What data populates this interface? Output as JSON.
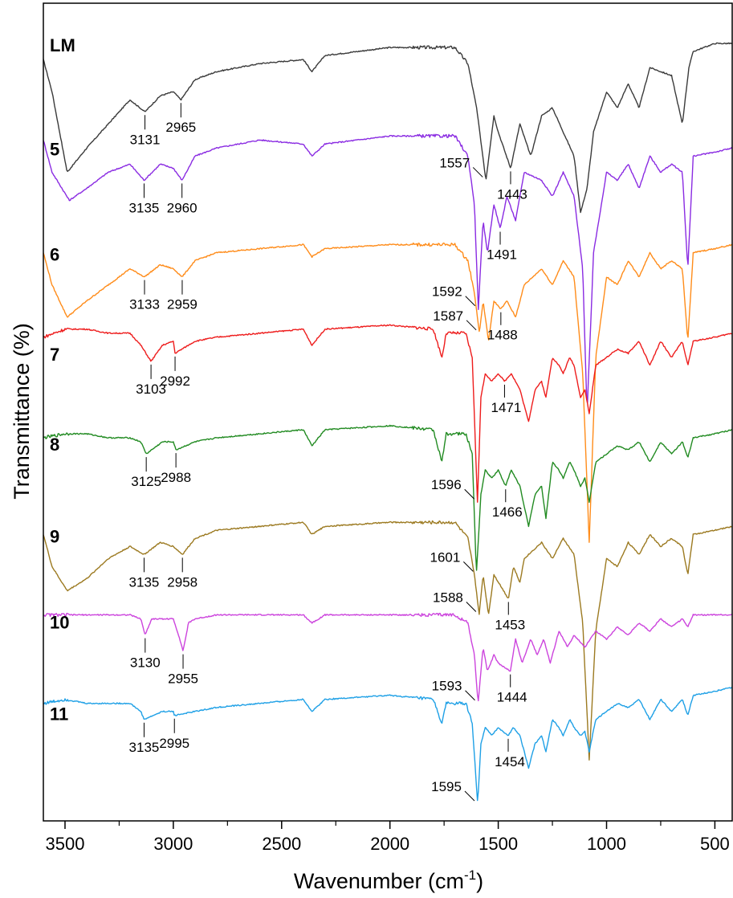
{
  "chart_data": {
    "type": "line",
    "xlabel": "Wavenumber (cm",
    "xlabel_sup": "-1",
    "xlabel_close": ")",
    "ylabel": "Transmittance (%)",
    "xlim": [
      3600,
      420
    ],
    "x_reversed": true,
    "x_ticks": [
      3500,
      3000,
      2500,
      2000,
      1500,
      1000,
      500
    ],
    "x_tick_labels": [
      "3500",
      "3000",
      "2500",
      "2000",
      "1500",
      "1000",
      "500"
    ],
    "y_ticks_shown": false,
    "grid": false,
    "series": [
      {
        "name": "LM",
        "color": "#3a3a3a",
        "baseline": 0.962,
        "x": [
          3600,
          3560,
          3490,
          3400,
          3300,
          3200,
          3131,
          3060,
          3000,
          2965,
          2900,
          2800,
          2600,
          2400,
          2360,
          2300,
          2000,
          1700,
          1640,
          1600,
          1557,
          1520,
          1500,
          1443,
          1400,
          1350,
          1300,
          1250,
          1200,
          1150,
          1120,
          1090,
          1060,
          1000,
          950,
          900,
          850,
          800,
          700,
          650,
          620,
          600,
          500,
          420
        ],
        "t": [
          0.94,
          0.9,
          0.8,
          0.83,
          0.86,
          0.89,
          0.875,
          0.895,
          0.9,
          0.89,
          0.915,
          0.925,
          0.935,
          0.94,
          0.925,
          0.945,
          0.955,
          0.955,
          0.935,
          0.88,
          0.79,
          0.87,
          0.85,
          0.805,
          0.86,
          0.82,
          0.87,
          0.88,
          0.85,
          0.82,
          0.75,
          0.78,
          0.85,
          0.9,
          0.88,
          0.91,
          0.88,
          0.93,
          0.92,
          0.86,
          0.93,
          0.95,
          0.96,
          0.96
        ]
      },
      {
        "name": "5",
        "color": "#8a2be2",
        "baseline": 0.833,
        "x": [
          3600,
          3560,
          3480,
          3400,
          3300,
          3200,
          3135,
          3060,
          3000,
          2960,
          2900,
          2800,
          2600,
          2400,
          2360,
          2300,
          2000,
          1700,
          1640,
          1610,
          1592,
          1570,
          1550,
          1520,
          1491,
          1460,
          1420,
          1380,
          1300,
          1250,
          1200,
          1150,
          1110,
          1090,
          1060,
          1000,
          950,
          900,
          850,
          800,
          750,
          700,
          650,
          625,
          600,
          500,
          420
        ],
        "t": [
          0.84,
          0.8,
          0.765,
          0.78,
          0.8,
          0.81,
          0.79,
          0.81,
          0.805,
          0.79,
          0.82,
          0.83,
          0.84,
          0.835,
          0.82,
          0.835,
          0.845,
          0.845,
          0.82,
          0.76,
          0.63,
          0.74,
          0.7,
          0.76,
          0.73,
          0.77,
          0.74,
          0.8,
          0.79,
          0.77,
          0.8,
          0.77,
          0.68,
          0.5,
          0.7,
          0.8,
          0.79,
          0.81,
          0.78,
          0.82,
          0.8,
          0.81,
          0.8,
          0.68,
          0.82,
          0.825,
          0.83
        ]
      },
      {
        "name": "6",
        "color": "#ff8c1a",
        "baseline": 0.702,
        "x": [
          3600,
          3560,
          3490,
          3400,
          3300,
          3200,
          3133,
          3060,
          3000,
          2959,
          2900,
          2800,
          2600,
          2400,
          2360,
          2300,
          2000,
          1700,
          1640,
          1610,
          1587,
          1570,
          1545,
          1520,
          1488,
          1460,
          1420,
          1380,
          1300,
          1250,
          1200,
          1150,
          1110,
          1080,
          1050,
          1000,
          950,
          900,
          850,
          800,
          750,
          700,
          650,
          625,
          600,
          500,
          420
        ],
        "t": [
          0.7,
          0.66,
          0.62,
          0.64,
          0.66,
          0.68,
          0.67,
          0.685,
          0.68,
          0.67,
          0.69,
          0.7,
          0.705,
          0.71,
          0.695,
          0.705,
          0.71,
          0.71,
          0.69,
          0.65,
          0.6,
          0.64,
          0.59,
          0.64,
          0.63,
          0.64,
          0.62,
          0.66,
          0.68,
          0.66,
          0.69,
          0.67,
          0.55,
          0.34,
          0.57,
          0.67,
          0.66,
          0.69,
          0.67,
          0.7,
          0.68,
          0.69,
          0.68,
          0.59,
          0.7,
          0.705,
          0.71
        ]
      },
      {
        "name": "7",
        "color": "#ee1c1c",
        "baseline": 0.578,
        "x": [
          3600,
          3500,
          3400,
          3300,
          3200,
          3150,
          3103,
          3050,
          3000,
          2992,
          2900,
          2800,
          2600,
          2400,
          2360,
          2300,
          2000,
          1800,
          1760,
          1740,
          1700,
          1650,
          1620,
          1596,
          1580,
          1560,
          1530,
          1500,
          1471,
          1440,
          1400,
          1360,
          1330,
          1300,
          1280,
          1250,
          1220,
          1200,
          1170,
          1150,
          1120,
          1100,
          1080,
          1050,
          1000,
          950,
          900,
          850,
          800,
          750,
          700,
          650,
          625,
          600,
          500,
          420
        ],
        "t": [
          0.595,
          0.605,
          0.605,
          0.6,
          0.6,
          0.585,
          0.565,
          0.585,
          0.59,
          0.575,
          0.59,
          0.595,
          0.6,
          0.605,
          0.585,
          0.605,
          0.61,
          0.605,
          0.57,
          0.6,
          0.6,
          0.6,
          0.57,
          0.39,
          0.52,
          0.55,
          0.54,
          0.55,
          0.54,
          0.55,
          0.53,
          0.49,
          0.53,
          0.54,
          0.52,
          0.57,
          0.56,
          0.55,
          0.57,
          0.56,
          0.52,
          0.53,
          0.5,
          0.56,
          0.57,
          0.58,
          0.575,
          0.59,
          0.56,
          0.59,
          0.57,
          0.59,
          0.56,
          0.59,
          0.595,
          0.6
        ]
      },
      {
        "name": "8",
        "color": "#228b22",
        "baseline": 0.466,
        "x": [
          3600,
          3500,
          3400,
          3300,
          3200,
          3150,
          3125,
          3050,
          3000,
          2988,
          2900,
          2800,
          2600,
          2400,
          2360,
          2300,
          2000,
          1800,
          1760,
          1740,
          1700,
          1650,
          1620,
          1601,
          1580,
          1560,
          1530,
          1500,
          1466,
          1440,
          1400,
          1360,
          1330,
          1300,
          1280,
          1250,
          1220,
          1200,
          1170,
          1150,
          1120,
          1100,
          1080,
          1050,
          1000,
          950,
          900,
          850,
          800,
          750,
          700,
          650,
          625,
          600,
          500,
          420
        ],
        "t": [
          0.47,
          0.475,
          0.475,
          0.47,
          0.47,
          0.465,
          0.45,
          0.465,
          0.465,
          0.455,
          0.465,
          0.47,
          0.475,
          0.48,
          0.46,
          0.48,
          0.485,
          0.48,
          0.44,
          0.475,
          0.475,
          0.475,
          0.45,
          0.3,
          0.4,
          0.43,
          0.42,
          0.43,
          0.41,
          0.43,
          0.41,
          0.36,
          0.4,
          0.41,
          0.37,
          0.44,
          0.43,
          0.42,
          0.44,
          0.43,
          0.41,
          0.42,
          0.39,
          0.44,
          0.45,
          0.46,
          0.455,
          0.465,
          0.44,
          0.465,
          0.45,
          0.465,
          0.445,
          0.47,
          0.475,
          0.48
        ]
      },
      {
        "name": "9",
        "color": "#9c7a21",
        "baseline": 0.352,
        "x": [
          3600,
          3560,
          3490,
          3400,
          3300,
          3200,
          3135,
          3060,
          3000,
          2958,
          2900,
          2800,
          2600,
          2400,
          2360,
          2300,
          2000,
          1700,
          1640,
          1610,
          1588,
          1570,
          1545,
          1520,
          1453,
          1430,
          1400,
          1380,
          1300,
          1250,
          1200,
          1150,
          1110,
          1080,
          1050,
          1000,
          950,
          900,
          850,
          800,
          750,
          700,
          650,
          625,
          600,
          500,
          420
        ],
        "t": [
          0.35,
          0.31,
          0.28,
          0.295,
          0.32,
          0.335,
          0.325,
          0.34,
          0.335,
          0.325,
          0.345,
          0.355,
          0.36,
          0.365,
          0.35,
          0.36,
          0.365,
          0.365,
          0.345,
          0.3,
          0.25,
          0.3,
          0.25,
          0.3,
          0.27,
          0.31,
          0.29,
          0.32,
          0.34,
          0.32,
          0.345,
          0.325,
          0.24,
          0.07,
          0.23,
          0.32,
          0.31,
          0.34,
          0.325,
          0.35,
          0.335,
          0.345,
          0.335,
          0.3,
          0.35,
          0.355,
          0.36
        ]
      },
      {
        "name": "10",
        "color": "#cc44dd",
        "baseline": 0.245,
        "x": [
          3600,
          3500,
          3300,
          3200,
          3150,
          3130,
          3100,
          3000,
          2970,
          2955,
          2930,
          2900,
          2800,
          2600,
          2400,
          2360,
          2300,
          2000,
          1700,
          1640,
          1610,
          1593,
          1570,
          1550,
          1520,
          1500,
          1444,
          1420,
          1390,
          1350,
          1320,
          1290,
          1260,
          1220,
          1180,
          1150,
          1100,
          1050,
          1000,
          950,
          900,
          850,
          800,
          750,
          700,
          650,
          625,
          600,
          500,
          420
        ],
        "t": [
          0.25,
          0.25,
          0.25,
          0.25,
          0.245,
          0.225,
          0.245,
          0.245,
          0.22,
          0.205,
          0.24,
          0.245,
          0.25,
          0.25,
          0.25,
          0.24,
          0.25,
          0.25,
          0.25,
          0.24,
          0.2,
          0.14,
          0.21,
          0.18,
          0.2,
          0.19,
          0.18,
          0.22,
          0.19,
          0.22,
          0.2,
          0.22,
          0.19,
          0.23,
          0.21,
          0.225,
          0.21,
          0.23,
          0.22,
          0.235,
          0.225,
          0.24,
          0.23,
          0.245,
          0.235,
          0.245,
          0.235,
          0.25,
          0.25,
          0.25
        ]
      },
      {
        "name": "11",
        "color": "#1ea0e6",
        "baseline": 0.131,
        "x": [
          3600,
          3500,
          3400,
          3300,
          3200,
          3150,
          3135,
          3050,
          3000,
          2995,
          2900,
          2800,
          2600,
          2400,
          2360,
          2300,
          2000,
          1800,
          1760,
          1740,
          1700,
          1650,
          1620,
          1595,
          1580,
          1560,
          1530,
          1500,
          1454,
          1430,
          1400,
          1360,
          1330,
          1300,
          1280,
          1250,
          1220,
          1200,
          1170,
          1150,
          1120,
          1100,
          1080,
          1050,
          1000,
          950,
          900,
          850,
          800,
          750,
          700,
          650,
          625,
          600,
          500,
          420
        ],
        "t": [
          0.14,
          0.145,
          0.14,
          0.14,
          0.14,
          0.13,
          0.12,
          0.13,
          0.13,
          0.125,
          0.13,
          0.135,
          0.14,
          0.145,
          0.13,
          0.145,
          0.15,
          0.145,
          0.115,
          0.14,
          0.14,
          0.14,
          0.115,
          0.015,
          0.09,
          0.11,
          0.1,
          0.11,
          0.1,
          0.11,
          0.1,
          0.06,
          0.09,
          0.1,
          0.08,
          0.12,
          0.11,
          0.1,
          0.12,
          0.11,
          0.1,
          0.105,
          0.08,
          0.12,
          0.13,
          0.14,
          0.135,
          0.145,
          0.12,
          0.145,
          0.13,
          0.145,
          0.125,
          0.15,
          0.155,
          0.16
        ]
      }
    ],
    "annotations": [
      {
        "series": "LM",
        "x": 3131,
        "label": "3131"
      },
      {
        "series": "LM",
        "x": 2965,
        "label": "2965"
      },
      {
        "series": "LM",
        "x": 1557,
        "label": "1557"
      },
      {
        "series": "LM",
        "x": 1443,
        "label": "1443"
      },
      {
        "series": "5",
        "x": 3135,
        "label": "3135"
      },
      {
        "series": "5",
        "x": 2960,
        "label": "2960"
      },
      {
        "series": "5",
        "x": 1592,
        "label": "1592"
      },
      {
        "series": "5",
        "x": 1491,
        "label": "1491"
      },
      {
        "series": "6",
        "x": 3133,
        "label": "3133"
      },
      {
        "series": "6",
        "x": 2959,
        "label": "2959"
      },
      {
        "series": "6",
        "x": 1587,
        "label": "1587"
      },
      {
        "series": "6",
        "x": 1488,
        "label": "1488"
      },
      {
        "series": "7",
        "x": 3103,
        "label": "3103"
      },
      {
        "series": "7",
        "x": 2992,
        "label": "2992"
      },
      {
        "series": "7",
        "x": 1596,
        "label": "1596"
      },
      {
        "series": "7",
        "x": 1471,
        "label": "1471"
      },
      {
        "series": "8",
        "x": 3125,
        "label": "3125"
      },
      {
        "series": "8",
        "x": 2988,
        "label": "2988"
      },
      {
        "series": "8",
        "x": 1601,
        "label": "1601"
      },
      {
        "series": "8",
        "x": 1466,
        "label": "1466"
      },
      {
        "series": "9",
        "x": 3135,
        "label": "3135"
      },
      {
        "series": "9",
        "x": 2958,
        "label": "2958"
      },
      {
        "series": "9",
        "x": 1588,
        "label": "1588"
      },
      {
        "series": "9",
        "x": 1453,
        "label": "1453"
      },
      {
        "series": "10",
        "x": 3130,
        "label": "3130"
      },
      {
        "series": "10",
        "x": 2955,
        "label": "2955"
      },
      {
        "series": "10",
        "x": 1593,
        "label": "1593"
      },
      {
        "series": "10",
        "x": 1444,
        "label": "1444"
      },
      {
        "series": "11",
        "x": 3135,
        "label": "3135"
      },
      {
        "series": "11",
        "x": 2995,
        "label": "2995"
      },
      {
        "series": "11",
        "x": 1595,
        "label": "1595"
      },
      {
        "series": "11",
        "x": 1454,
        "label": "1454"
      }
    ]
  }
}
